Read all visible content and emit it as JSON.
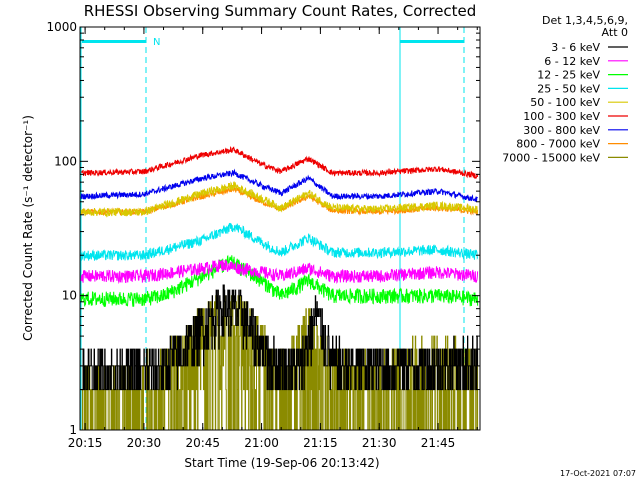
{
  "chart_data": {
    "type": "line",
    "title": "RHESSI Observing Summary Count Rates, Corrected",
    "xlabel": "Start Time (19-Sep-06 20:13:42)",
    "ylabel": "Corrected Count Rate (s⁻¹ detector⁻¹)",
    "y_scale": "log",
    "ylim": [
      1,
      1000
    ],
    "xlim_minutes": [
      0,
      102
    ],
    "x_ticks": [
      "20:15",
      "20:30",
      "20:45",
      "21:00",
      "21:15",
      "21:30",
      "21:45"
    ],
    "y_ticks": [
      "1",
      "10",
      "100",
      "1000"
    ],
    "legend_header": [
      "Det 1,3,4,5,6,9,",
      "Att 0"
    ],
    "legend_position": "right",
    "timestamp": "17-Oct-2021 07:07",
    "flags": [
      {
        "label": "N",
        "color": "#00e5ee"
      }
    ],
    "series": [
      {
        "name": "3 - 6 keV",
        "color": "#000000",
        "x": [
          "20:15",
          "20:30",
          "20:35",
          "20:40",
          "20:45",
          "20:50",
          "20:55",
          "21:00",
          "21:05",
          "21:10",
          "21:12",
          "21:14",
          "21:18",
          "21:25",
          "21:35",
          "21:45",
          "21:55"
        ],
        "values": [
          2.8,
          2.8,
          3.0,
          4.0,
          6.0,
          8.5,
          7.5,
          4.0,
          3.0,
          3.0,
          5.0,
          7.5,
          3.2,
          3.0,
          3.0,
          3.2,
          3.2
        ]
      },
      {
        "name": "6 - 12 keV",
        "color": "#ff00ff",
        "x": [
          "20:15",
          "20:30",
          "20:45",
          "20:50",
          "20:55",
          "21:00",
          "21:05",
          "21:12",
          "21:18",
          "21:30",
          "21:45",
          "21:55"
        ],
        "values": [
          14,
          14,
          16,
          17,
          16,
          15,
          14,
          16,
          14,
          14,
          15,
          14
        ]
      },
      {
        "name": "12 - 25 keV",
        "color": "#00ff00",
        "x": [
          "20:15",
          "20:30",
          "20:35",
          "20:45",
          "20:52",
          "21:00",
          "21:05",
          "21:12",
          "21:18",
          "21:30",
          "21:45",
          "21:55"
        ],
        "values": [
          9.5,
          9.5,
          10,
          14,
          18,
          13,
          10,
          13,
          10,
          10,
          10,
          9.5
        ]
      },
      {
        "name": "25 - 50 keV",
        "color": "#00e5ee",
        "x": [
          "20:15",
          "20:30",
          "20:45",
          "20:53",
          "21:00",
          "21:05",
          "21:12",
          "21:18",
          "21:30",
          "21:45",
          "21:55"
        ],
        "values": [
          20,
          20,
          26,
          33,
          25,
          21,
          27,
          21,
          21,
          22,
          20
        ]
      },
      {
        "name": "50 - 100 keV",
        "color": "#d8c800",
        "x": [
          "20:15",
          "20:30",
          "20:45",
          "20:53",
          "21:00",
          "21:05",
          "21:12",
          "21:18",
          "21:30",
          "21:45",
          "21:55"
        ],
        "values": [
          42,
          42,
          58,
          66,
          53,
          45,
          58,
          45,
          44,
          47,
          44
        ]
      },
      {
        "name": "100 - 300 keV",
        "color": "#ee0000",
        "x": [
          "20:15",
          "20:30",
          "20:45",
          "20:53",
          "21:00",
          "21:05",
          "21:12",
          "21:18",
          "21:30",
          "21:45",
          "21:55"
        ],
        "values": [
          82,
          84,
          112,
          122,
          95,
          84,
          105,
          82,
          82,
          88,
          78
        ]
      },
      {
        "name": "300 - 800 keV",
        "color": "#0000ee",
        "x": [
          "20:15",
          "20:30",
          "20:45",
          "20:53",
          "21:00",
          "21:05",
          "21:12",
          "21:18",
          "21:30",
          "21:45",
          "21:55"
        ],
        "values": [
          55,
          57,
          75,
          82,
          66,
          58,
          75,
          55,
          55,
          60,
          52
        ]
      },
      {
        "name": "800 - 7000 keV",
        "color": "#ff8c00",
        "x": [
          "20:15",
          "20:30",
          "20:45",
          "20:53",
          "21:00",
          "21:05",
          "21:12",
          "21:18",
          "21:30",
          "21:45",
          "21:55"
        ],
        "values": [
          42,
          42,
          55,
          62,
          50,
          44,
          55,
          43,
          42,
          45,
          42
        ]
      },
      {
        "name": "7000 - 15000 keV",
        "color": "#8b8b00",
        "x": [
          "20:15",
          "20:30",
          "20:35",
          "20:45",
          "20:52",
          "21:00",
          "21:05",
          "21:12",
          "21:18",
          "21:25",
          "21:35",
          "21:45",
          "21:55"
        ],
        "values": [
          1.8,
          1.8,
          2.2,
          4.5,
          6.5,
          3.5,
          2.0,
          4.5,
          2.2,
          2.0,
          2.4,
          2.6,
          2.4
        ]
      }
    ]
  }
}
